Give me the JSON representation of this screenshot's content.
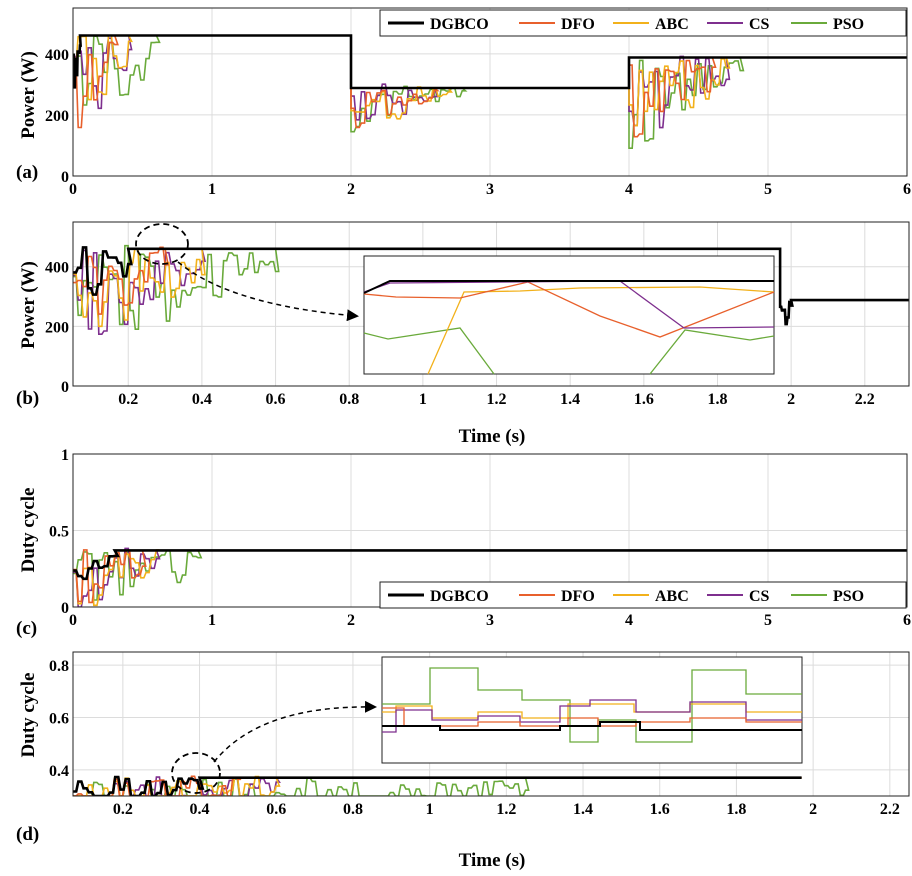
{
  "chart_data": [
    {
      "panel_label": "(a)",
      "type": "line",
      "ylabel": "Power (W)",
      "xlabel": "",
      "xlim": [
        0,
        6
      ],
      "ylim": [
        0,
        550
      ],
      "xticks": [
        "0",
        "1",
        "2",
        "3",
        "4",
        "5",
        "6"
      ],
      "yticks": [
        "0",
        "200",
        "400"
      ],
      "grid": true,
      "legend": {
        "placement": "top-right",
        "entries": [
          "DGBCO",
          "DFO",
          "ABC",
          "CS",
          "PSO"
        ]
      },
      "series": [
        {
          "name": "DGBCO",
          "steady_levels": [
            {
              "from": 0.05,
              "to": 2.0,
              "value": 460
            },
            {
              "from": 2.0,
              "to": 4.0,
              "value": 288
            },
            {
              "from": 4.0,
              "to": 6.0,
              "value": 388
            }
          ]
        },
        {
          "name": "DFO",
          "steady_levels": [
            {
              "from": 0.3,
              "to": 2.0,
              "value": 460
            },
            {
              "from": 2.6,
              "to": 4.0,
              "value": 288
            },
            {
              "from": 4.6,
              "to": 6.0,
              "value": 388
            }
          ]
        },
        {
          "name": "ABC",
          "steady_levels": [
            {
              "from": 0.4,
              "to": 2.0,
              "value": 460
            },
            {
              "from": 2.7,
              "to": 4.0,
              "value": 288
            },
            {
              "from": 4.7,
              "to": 6.0,
              "value": 388
            }
          ]
        },
        {
          "name": "CS",
          "steady_levels": [
            {
              "from": 0.4,
              "to": 2.0,
              "value": 460
            },
            {
              "from": 2.6,
              "to": 4.0,
              "value": 288
            },
            {
              "from": 4.7,
              "to": 6.0,
              "value": 388
            }
          ]
        },
        {
          "name": "PSO",
          "steady_levels": [
            {
              "from": 0.6,
              "to": 2.0,
              "value": 460
            },
            {
              "from": 2.8,
              "to": 4.0,
              "value": 288
            },
            {
              "from": 4.8,
              "to": 6.0,
              "value": 388
            }
          ]
        }
      ]
    },
    {
      "panel_label": "(b)",
      "type": "line",
      "ylabel": "Power (W)",
      "xlabel": "Time (s)",
      "xlim": [
        0.05,
        2.32
      ],
      "ylim": [
        0,
        550
      ],
      "xticks": [
        "0.2",
        "0.4",
        "0.6",
        "0.8",
        "1",
        "1.2",
        "1.4",
        "1.6",
        "1.8",
        "2",
        "2.2"
      ],
      "yticks": [
        "0",
        "200",
        "400"
      ],
      "grid": true,
      "zoom_inset": true,
      "series": [
        {
          "name": "DGBCO",
          "steady_levels": [
            {
              "from": 0.2,
              "to": 1.97,
              "value": 460
            },
            {
              "from": 2.0,
              "to": 2.32,
              "value": 288
            }
          ]
        },
        {
          "name": "DFO",
          "steady_levels": [
            {
              "from": 0.3,
              "to": 1.97,
              "value": 460
            }
          ]
        },
        {
          "name": "ABC",
          "steady_levels": [
            {
              "from": 0.4,
              "to": 1.97,
              "value": 460
            }
          ]
        },
        {
          "name": "CS",
          "steady_levels": [
            {
              "from": 0.4,
              "to": 1.97,
              "value": 460
            }
          ]
        },
        {
          "name": "PSO",
          "steady_levels": [
            {
              "from": 0.6,
              "to": 1.97,
              "value": 460
            }
          ]
        }
      ]
    },
    {
      "panel_label": "(c)",
      "type": "line",
      "ylabel": "Duty cycle",
      "xlabel": "",
      "xlim": [
        0,
        6
      ],
      "ylim": [
        0,
        1
      ],
      "xticks": [
        "0",
        "1",
        "2",
        "3",
        "4",
        "5",
        "6"
      ],
      "yticks": [
        "0",
        "0.5",
        "1"
      ],
      "grid": true,
      "legend": {
        "placement": "bottom-right",
        "entries": [
          "DGBCO",
          "DFO",
          "ABC",
          "CS",
          "PSO"
        ]
      },
      "series": [
        {
          "name": "DGBCO",
          "steady_levels": [
            {
              "from": 0.3,
              "to": 6.0,
              "value": 0.37
            }
          ]
        },
        {
          "name": "DFO",
          "steady_levels": [
            {
              "from": 0.5,
              "to": 6.0,
              "value": 0.37
            }
          ]
        },
        {
          "name": "ABC",
          "steady_levels": [
            {
              "from": 0.6,
              "to": 6.0,
              "value": 0.37
            }
          ]
        },
        {
          "name": "CS",
          "steady_levels": [
            {
              "from": 0.6,
              "to": 6.0,
              "value": 0.37
            }
          ]
        },
        {
          "name": "PSO",
          "steady_levels": [
            {
              "from": 0.9,
              "to": 6.0,
              "value": 0.37
            }
          ]
        }
      ]
    },
    {
      "panel_label": "(d)",
      "type": "line",
      "ylabel": "Duty cycle",
      "xlabel": "Time (s)",
      "xlim": [
        0.07,
        2.25
      ],
      "ylim": [
        0.3,
        0.85
      ],
      "xticks": [
        "0.2",
        "0.4",
        "0.6",
        "0.8",
        "1",
        "1.2",
        "1.4",
        "1.6",
        "1.8",
        "2",
        "2.2"
      ],
      "yticks": [
        "0.4",
        "0.6",
        "0.8"
      ],
      "grid": true,
      "zoom_inset": true,
      "series": [
        {
          "name": "DGBCO",
          "steady_levels": [
            {
              "from": 0.4,
              "to": 1.97,
              "value": 0.37
            }
          ]
        },
        {
          "name": "DFO",
          "steady_levels": [
            {
              "from": 0.5,
              "to": 1.97,
              "value": 0.37
            }
          ]
        },
        {
          "name": "ABC",
          "steady_levels": [
            {
              "from": 0.6,
              "to": 1.97,
              "value": 0.37
            }
          ]
        },
        {
          "name": "CS",
          "steady_levels": [
            {
              "from": 0.6,
              "to": 1.97,
              "value": 0.37
            }
          ]
        },
        {
          "name": "PSO",
          "steady_levels": [
            {
              "from": 1.25,
              "to": 1.97,
              "value": 0.37
            }
          ]
        }
      ]
    }
  ],
  "colors": {
    "DGBCO": "#000000",
    "DFO": "#e8602c",
    "ABC": "#f2b11b",
    "CS": "#7e2f8e",
    "PSO": "#6aaa3b"
  }
}
